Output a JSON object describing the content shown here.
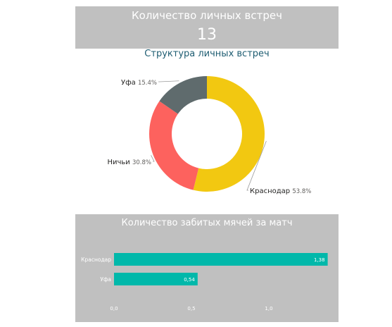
{
  "kpi": {
    "title": "Количество личных встреч",
    "value": "13"
  },
  "colors": {
    "panel_bg": "#c0c0c0",
    "donut_title": "#1e5d72",
    "krasnodar": "#f2c811",
    "nichyi": "#fd625e",
    "ufa": "#5f6b6d",
    "bar": "#01b8aa"
  },
  "chart_data": [
    {
      "type": "pie",
      "style": "donut",
      "title": "Структура личных встреч",
      "slices": [
        {
          "label": "Краснодар",
          "value": 53.8,
          "display": "53.8%",
          "color": "#f2c811"
        },
        {
          "label": "Ничьи",
          "value": 30.8,
          "display": "30.8%",
          "color": "#fd625e"
        },
        {
          "label": "Уфа",
          "value": 15.4,
          "display": "15.4%",
          "color": "#5f6b6d"
        }
      ]
    },
    {
      "type": "bar",
      "orientation": "horizontal",
      "title": "Количество забитых мячей за матч",
      "categories": [
        "Краснодар",
        "Уфа"
      ],
      "values": [
        1.38,
        0.54
      ],
      "value_labels": [
        "1,38",
        "0,54"
      ],
      "xlim": [
        0,
        1.4
      ],
      "xticks": [
        0,
        0.5,
        1.0
      ],
      "xtick_labels": [
        "0,0",
        "0,5",
        "1,0"
      ],
      "bar_color": "#01b8aa"
    }
  ]
}
